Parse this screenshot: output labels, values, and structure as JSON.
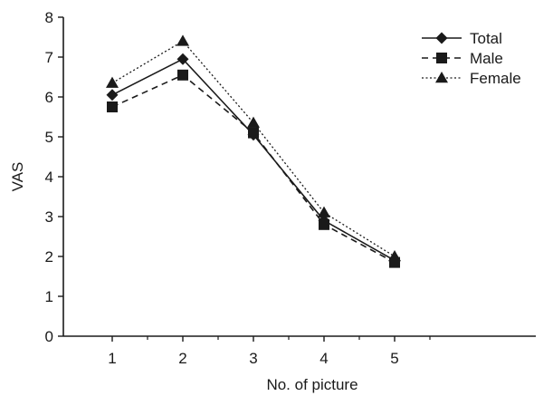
{
  "chart_data": {
    "type": "line",
    "title": "",
    "xlabel": "No. of picture",
    "ylabel": "VAS",
    "categories": [
      "1",
      "2",
      "3",
      "4",
      "5"
    ],
    "ylim": [
      0,
      8
    ],
    "yticks": [
      "0",
      "1",
      "2",
      "3",
      "4",
      "5",
      "6",
      "7",
      "8"
    ],
    "grid": false,
    "legend_position": "top-right",
    "series": [
      {
        "name": "Total",
        "values": [
          6.05,
          6.95,
          5.05,
          2.9,
          1.9
        ],
        "marker": "diamond",
        "dash": "solid"
      },
      {
        "name": "Male",
        "values": [
          5.75,
          6.55,
          5.1,
          2.8,
          1.85
        ],
        "marker": "square",
        "dash": "dashed"
      },
      {
        "name": "Female",
        "values": [
          6.35,
          7.4,
          5.35,
          3.1,
          2.0
        ],
        "marker": "triangle",
        "dash": "dotted"
      }
    ],
    "colors": {
      "line": "#1a1a1a"
    }
  }
}
